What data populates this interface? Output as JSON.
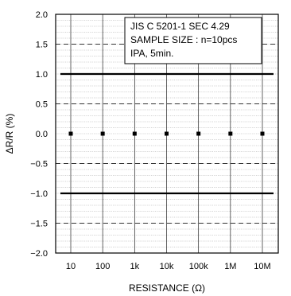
{
  "chart_data": {
    "type": "scatter",
    "xlabel": "RESISTANCE (Ω)",
    "ylabel": "ΔR/R (%)",
    "categories": [
      "10",
      "100",
      "1k",
      "10k",
      "100k",
      "1M",
      "10M"
    ],
    "yticks": [
      "2.0",
      "1.5",
      "1.0",
      "0.5",
      "0.0",
      "−0.5",
      "−1.0",
      "−1.5",
      "−2.0"
    ],
    "ytick_values": [
      2.0,
      1.5,
      1.0,
      0.5,
      0.0,
      -0.5,
      -1.0,
      -1.5,
      -2.0
    ],
    "ylim": [
      -2.0,
      2.0
    ],
    "minor_grid_step": 0.1,
    "series": [
      {
        "values": [
          0.0,
          0.0,
          0.0,
          0.0,
          0.0,
          0.0,
          0.0
        ]
      }
    ],
    "limit_lines": [
      1.0,
      -1.0
    ],
    "dashed_lines": [
      1.5,
      0.5,
      -0.5,
      -1.5
    ],
    "annotation": [
      "JIS C 5201-1 SEC 4.29",
      "SAMPLE SIZE : n=10pcs",
      "IPA, 5min."
    ],
    "grid": true
  }
}
